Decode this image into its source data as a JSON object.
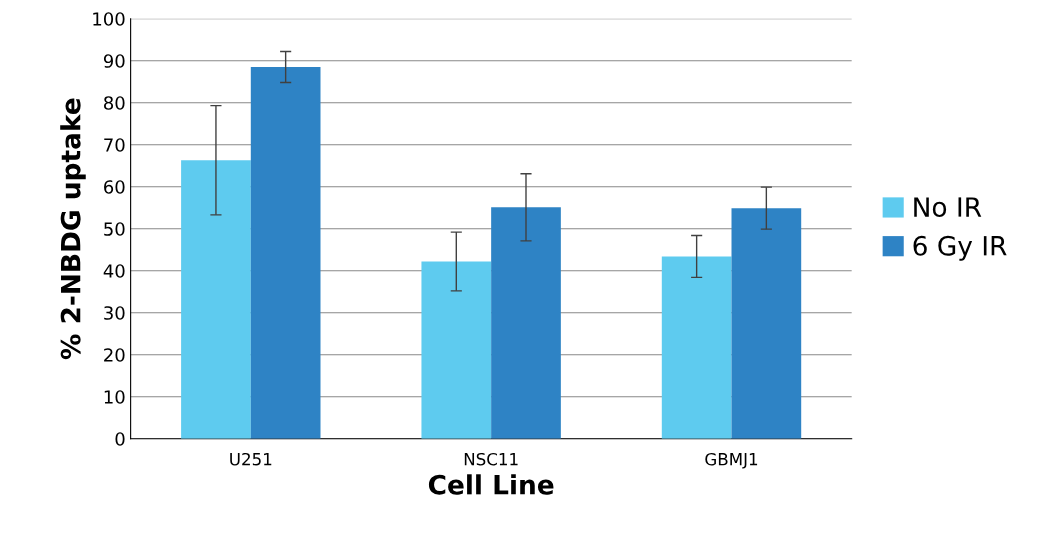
{
  "chart_data": {
    "type": "bar",
    "xlabel": "Cell Line",
    "ylabel": "% 2-NBDG uptake",
    "categories": [
      "U251",
      "NSC11",
      "GBMJ1"
    ],
    "series": [
      {
        "name": "No IR",
        "color": "#5ecbef",
        "values": [
          66.3,
          42.2,
          43.4
        ],
        "errors": [
          13,
          7,
          5
        ]
      },
      {
        "name": "6 Gy IR",
        "color": "#2e83c5",
        "values": [
          88.5,
          55.1,
          54.9
        ],
        "errors": [
          3.7,
          8,
          5
        ]
      }
    ],
    "ylim": [
      0,
      100
    ],
    "yticks": [
      0,
      10,
      20,
      30,
      40,
      50,
      60,
      70,
      80,
      90,
      100
    ],
    "grid": "y",
    "legend": "right"
  }
}
